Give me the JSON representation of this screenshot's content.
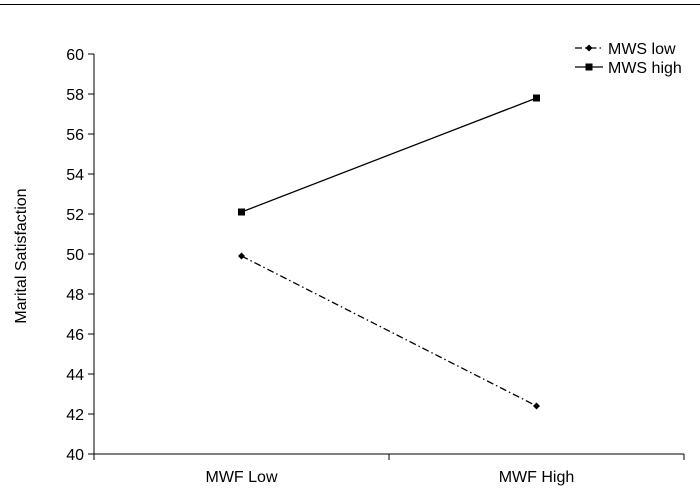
{
  "chart_data": {
    "type": "line",
    "title": "",
    "xlabel": "",
    "ylabel": "Marital Satisfaction",
    "categories": [
      "MWF Low",
      "MWF High"
    ],
    "ylim": [
      40,
      60
    ],
    "yticks": [
      40,
      42,
      44,
      46,
      48,
      50,
      52,
      54,
      56,
      58,
      60
    ],
    "grid": false,
    "legend_position": "top-right",
    "series": [
      {
        "name": "MWS low",
        "values": [
          49.9,
          42.4
        ],
        "line_style": "dash-dot",
        "marker": "diamond",
        "color": "#000000"
      },
      {
        "name": "MWS high",
        "values": [
          52.1,
          57.8
        ],
        "line_style": "solid",
        "marker": "square",
        "color": "#000000"
      }
    ]
  }
}
